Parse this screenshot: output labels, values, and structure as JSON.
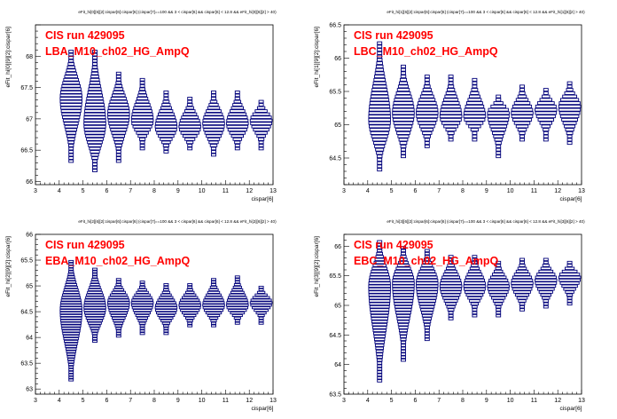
{
  "chart_data": [
    {
      "type": "box",
      "title": "eFit_hi[0][6][2]:cispar[6]:cispar[6] (cispar[7]==100 && 3 < cispar[6] && cispar[6] < 12.8 && eFit_hi[0][6][2] > 40)",
      "annotation_line1": "CIS run 429095",
      "annotation_line2": "LBA_M10_ch02_HG_AmpQ",
      "xlabel": "cispar[6]",
      "ylabel": "eFit_hi[0][9][2]:cispar[6]",
      "xlim": [
        3,
        13
      ],
      "ylim": [
        65.95,
        68.5
      ],
      "xticks": [
        "3",
        "4",
        "5",
        "6",
        "7",
        "8",
        "9",
        "10",
        "11",
        "12",
        "13"
      ],
      "yticks": [
        "66",
        "66.5",
        "67",
        "67.5",
        "68"
      ],
      "x": [
        4.5,
        5.5,
        6.5,
        7.5,
        8.5,
        9.5,
        10.5,
        11.5,
        12.5
      ],
      "center": [
        67.3,
        66.9,
        67.05,
        66.95,
        66.85,
        66.85,
        66.9,
        66.9,
        66.95
      ],
      "low": [
        66.35,
        66.15,
        66.35,
        66.55,
        66.45,
        66.5,
        66.4,
        66.5,
        66.55
      ],
      "high": [
        68.05,
        68.05,
        67.7,
        67.6,
        67.4,
        67.3,
        67.4,
        67.4,
        67.25
      ]
    },
    {
      "type": "box",
      "title": "eFit_hi[1][6][2]:cispar[6]:cispar[6] (cispar[7]==100 && 3 < cispar[6] && cispar[6] < 12.8 && eFit_hi[1][6][2] > 40)",
      "annotation_line1": "CIS run 429095",
      "annotation_line2": "LBC_M10_ch02_HG_AmpQ",
      "xlabel": "cispar[6]",
      "ylabel": "eFit_hi[1][9][2]:cispar[6]",
      "xlim": [
        3,
        13
      ],
      "ylim": [
        64.1,
        66.5
      ],
      "xticks": [
        "3",
        "4",
        "5",
        "6",
        "7",
        "8",
        "9",
        "10",
        "11",
        "12",
        "13"
      ],
      "yticks": [
        "64.5",
        "65",
        "65.5",
        "66",
        "66.5"
      ],
      "x": [
        4.5,
        5.5,
        6.5,
        7.5,
        8.5,
        9.5,
        10.5,
        11.5,
        12.5
      ],
      "center": [
        65.05,
        65.15,
        65.15,
        65.1,
        65.1,
        65.15,
        65.15,
        65.2,
        65.25
      ],
      "low": [
        64.35,
        64.5,
        64.65,
        64.75,
        64.8,
        64.55,
        64.75,
        64.8,
        64.7
      ],
      "high": [
        66.2,
        65.85,
        65.7,
        65.7,
        65.65,
        65.4,
        65.55,
        65.5,
        65.6
      ]
    },
    {
      "type": "box",
      "title": "eFit_hi[2][6][2]:cispar[6]:cispar[6] (cispar[7]==100 && 3 < cispar[6] && cispar[6] < 12.8 && eFit_hi[2][6][2] > 40)",
      "annotation_line1": "CIS run 429095",
      "annotation_line2": "EBA_M10_ch02_HG_AmpQ",
      "xlabel": "cispar[6]",
      "ylabel": "eFit_hi[2][9][2]:cispar[6]",
      "xlim": [
        3,
        13
      ],
      "ylim": [
        62.9,
        66.0
      ],
      "xticks": [
        "3",
        "4",
        "5",
        "6",
        "7",
        "8",
        "9",
        "10",
        "11",
        "12",
        "13"
      ],
      "yticks": [
        "63",
        "63.5",
        "64",
        "64.5",
        "65",
        "65.5",
        "66"
      ],
      "x": [
        4.5,
        5.5,
        6.5,
        7.5,
        8.5,
        9.5,
        10.5,
        11.5,
        12.5
      ],
      "center": [
        64.5,
        64.55,
        64.65,
        64.65,
        64.55,
        64.6,
        64.6,
        64.6,
        64.65
      ],
      "low": [
        63.15,
        63.9,
        64.0,
        64.1,
        64.1,
        64.2,
        64.2,
        64.25,
        64.3
      ],
      "high": [
        65.45,
        65.3,
        65.1,
        65.05,
        65.0,
        65.0,
        65.1,
        65.15,
        64.95
      ]
    },
    {
      "type": "box",
      "title": "eFit_hi[3][6][2]:cispar[6]:cispar[6] (cispar[7]==100 && 3 < cispar[6] && cispar[6] < 12.8 && eFit_hi[3][6][2] > 40)",
      "annotation_line1": "CIS run 429095",
      "annotation_line2": "EBC_M10_ch02_HG_AmpQ",
      "xlabel": "cispar[6]",
      "ylabel": "eFit_hi[3][9][2]:cispar[6]",
      "xlim": [
        3,
        13
      ],
      "ylim": [
        63.5,
        66.2
      ],
      "xticks": [
        "3",
        "4",
        "5",
        "6",
        "7",
        "8",
        "9",
        "10",
        "11",
        "12",
        "13"
      ],
      "yticks": [
        "63.5",
        "64",
        "64.5",
        "65",
        "65.5",
        "66"
      ],
      "x": [
        4.5,
        5.5,
        6.5,
        7.5,
        8.5,
        9.5,
        10.5,
        11.5,
        12.5
      ],
      "center": [
        65.3,
        65.35,
        65.35,
        65.3,
        65.3,
        65.3,
        65.35,
        65.4,
        65.45
      ],
      "low": [
        63.7,
        64.1,
        64.4,
        64.75,
        64.85,
        64.85,
        64.9,
        64.95,
        65.05
      ],
      "high": [
        66.05,
        65.95,
        65.9,
        65.8,
        65.8,
        65.7,
        65.75,
        65.75,
        65.7
      ]
    }
  ]
}
